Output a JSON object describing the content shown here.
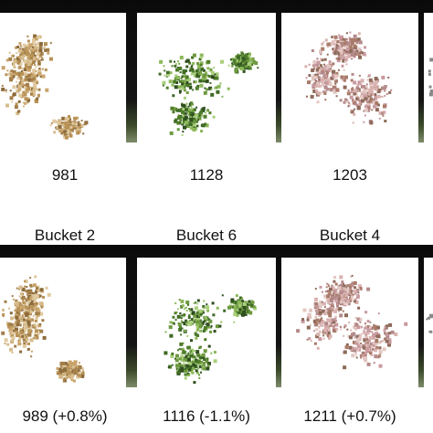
{
  "top_row": {
    "panels": [
      {
        "caption": "981",
        "palette": [
          "#c9a46b",
          "#b89256",
          "#a37f4a",
          "#d7bd8d",
          "#8c6b3b",
          "#e0c9a0"
        ]
      },
      {
        "caption": "1128",
        "palette": [
          "#6e9a3f",
          "#4f7d2a",
          "#8cb85a",
          "#3e6a24",
          "#a9cf7a",
          "#2f4e1f"
        ]
      },
      {
        "caption": "1203",
        "palette": [
          "#c99aa0",
          "#a97b6a",
          "#d9b2b0",
          "#8e6a5a",
          "#b48a8a",
          "#e3c7c2"
        ]
      },
      {
        "caption": "",
        "palette": [
          "#888888"
        ]
      }
    ]
  },
  "bottom_row": {
    "panels": [
      {
        "header": "Bucket 2",
        "caption": "989 (+0.8%)",
        "palette": [
          "#c9a46b",
          "#b89256",
          "#a37f4a",
          "#d7bd8d",
          "#8c6b3b",
          "#e0c9a0"
        ]
      },
      {
        "header": "Bucket 6",
        "caption": "1116 (-1.1%)",
        "palette": [
          "#6e9a3f",
          "#4f7d2a",
          "#8cb85a",
          "#3e6a24",
          "#a9cf7a",
          "#2f4e1f"
        ]
      },
      {
        "header": "Bucket 4",
        "caption": "1211 (+0.7%)",
        "palette": [
          "#c99aa0",
          "#a97b6a",
          "#d9b2b0",
          "#8e6a5a",
          "#b48a8a",
          "#e3c7c2"
        ]
      },
      {
        "header": "",
        "caption": "",
        "palette": [
          "#888888"
        ]
      }
    ]
  }
}
